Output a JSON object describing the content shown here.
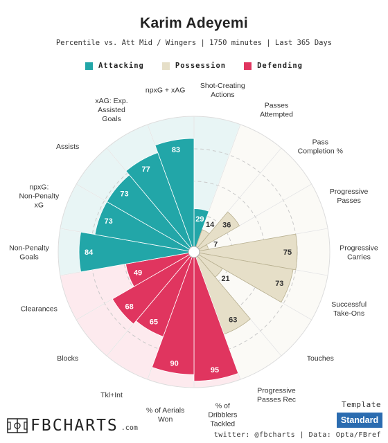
{
  "header": {
    "title": "Karim Adeyemi",
    "subtitle": "Percentile vs. Att Mid / Wingers | 1750 minutes | Last 365 Days"
  },
  "legend": [
    {
      "label": "Attacking",
      "color": "#22a6a8"
    },
    {
      "label": "Possession",
      "color": "#e6dfc8"
    },
    {
      "label": "Defending",
      "color": "#e0355f"
    }
  ],
  "chart_data": {
    "type": "radial_bar",
    "rlim": [
      0,
      100
    ],
    "categories": [
      {
        "label": "Shot-Creating Actions",
        "group": "Attacking",
        "value": 29
      },
      {
        "label": "Passes Attempted",
        "group": "Possession",
        "value": 14
      },
      {
        "label": "Pass Completion %",
        "group": "Possession",
        "value": 36
      },
      {
        "label": "Progressive Passes",
        "group": "Possession",
        "value": 7
      },
      {
        "label": "Progressive Carries",
        "group": "Possession",
        "value": 75
      },
      {
        "label": "Successful Take-Ons",
        "group": "Possession",
        "value": 73
      },
      {
        "label": "Touches",
        "group": "Possession",
        "value": 21
      },
      {
        "label": "Progressive Passes Rec",
        "group": "Possession",
        "value": 63
      },
      {
        "label": "% of Dribblers Tackled",
        "group": "Defending",
        "value": 95
      },
      {
        "label": "% of Aerials Won",
        "group": "Defending",
        "value": 90
      },
      {
        "label": "Tkl+Int",
        "group": "Defending",
        "value": 65
      },
      {
        "label": "Blocks",
        "group": "Defending",
        "value": 68
      },
      {
        "label": "Clearances",
        "group": "Defending",
        "value": 49
      },
      {
        "label": "Non-Penalty Goals",
        "group": "Attacking",
        "value": 84
      },
      {
        "label": "npxG: Non-Penalty xG",
        "group": "Attacking",
        "value": 73
      },
      {
        "label": "Assists",
        "group": "Attacking",
        "value": 73
      },
      {
        "label": "xAG: Exp. Assisted Goals",
        "group": "Attacking",
        "value": 77
      },
      {
        "label": "npxG + xAG",
        "group": "Attacking",
        "value": 83
      }
    ],
    "group_colors": {
      "Attacking": {
        "bar": "#22a6a8",
        "bg": "#e8f5f5"
      },
      "Possession": {
        "bar": "#e6dfc8",
        "bg": "#fbfaf6"
      },
      "Defending": {
        "bar": "#e0355f",
        "bg": "#fdeaee"
      }
    }
  },
  "footer": {
    "logo_text": "FBCHARTS",
    "logo_suffix": ".com",
    "template_label": "Template",
    "template_button": "Standard",
    "credits": "twitter: @fbcharts | Data: Opta/FBref"
  }
}
